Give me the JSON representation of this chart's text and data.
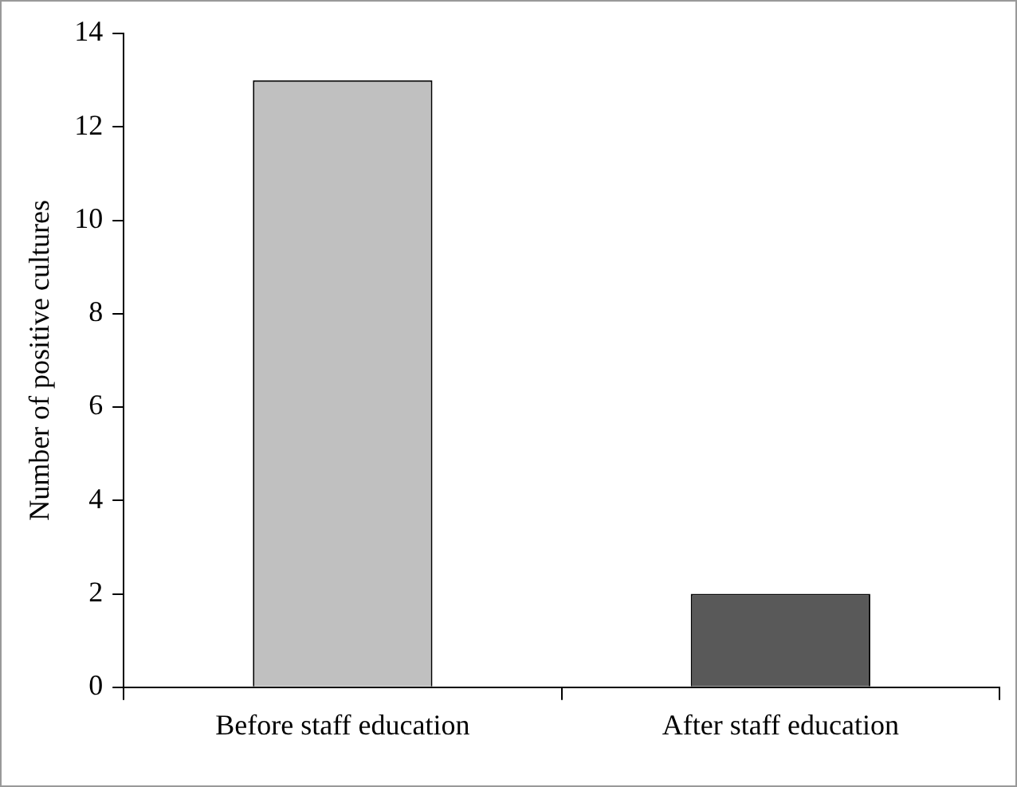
{
  "chart_data": {
    "type": "bar",
    "ylabel": "Number of positive cultures",
    "categories": [
      "Before staff education",
      "After staff education"
    ],
    "values": [
      13,
      2
    ],
    "colors": [
      "#c0c0c0",
      "#595959"
    ],
    "ylim": [
      0,
      14
    ],
    "yticks": [
      0,
      2,
      4,
      6,
      8,
      10,
      12,
      14
    ],
    "grid": false,
    "legend": false
  }
}
